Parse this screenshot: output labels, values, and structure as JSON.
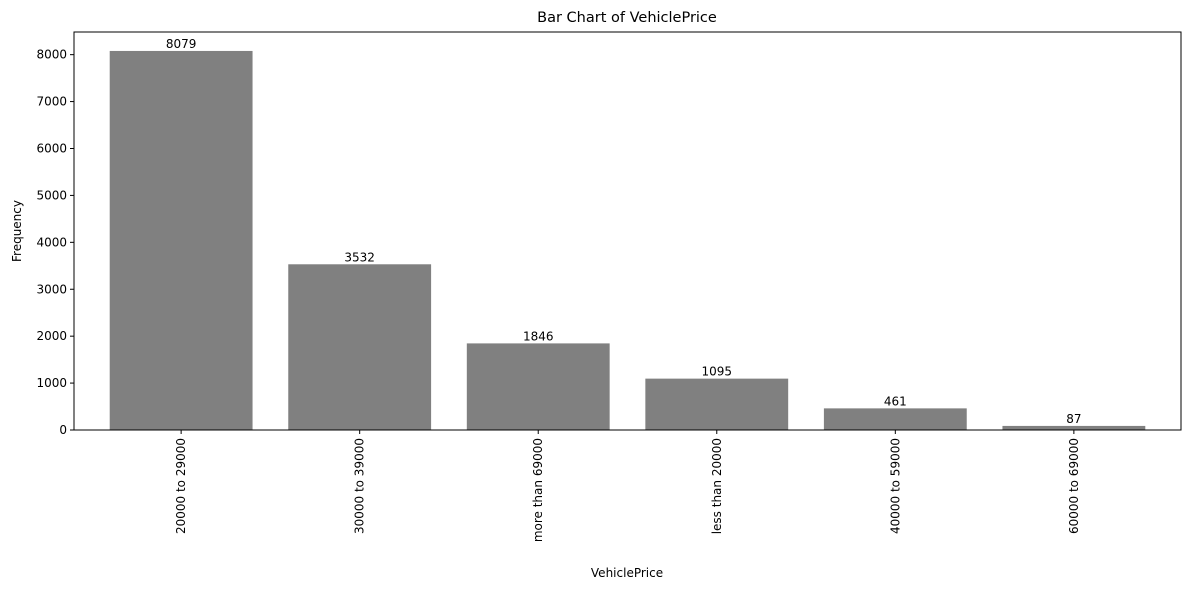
{
  "chart_data": {
    "type": "bar",
    "title": "Bar Chart of VehiclePrice",
    "xlabel": "VehiclePrice",
    "ylabel": "Frequency",
    "categories": [
      "20000 to 29000",
      "30000 to 39000",
      "more than 69000",
      "less than 20000",
      "40000 to 59000",
      "60000 to 69000"
    ],
    "values": [
      8079,
      3532,
      1846,
      1095,
      461,
      87
    ],
    "ylim": [
      0,
      8483
    ],
    "yticks": [
      0,
      1000,
      2000,
      3000,
      4000,
      5000,
      6000,
      7000,
      8000
    ],
    "bar_color": "#808080",
    "grid": false,
    "legend": "none",
    "data_labels": true
  }
}
